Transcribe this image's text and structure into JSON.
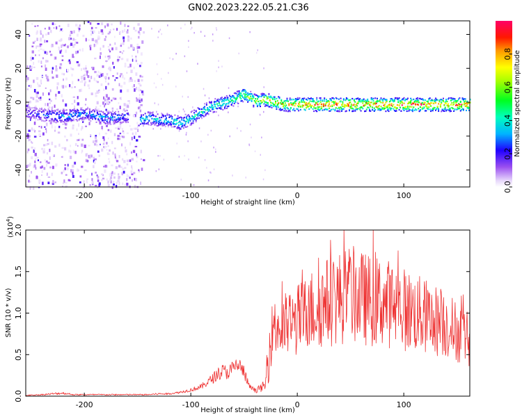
{
  "title": "GN02.2023.222.05.21.C36",
  "chart_data": [
    {
      "type": "heatmap",
      "xlabel": "Height of straight line (km)",
      "ylabel": "Frequency (Hz)",
      "xlim": [
        -255,
        162
      ],
      "ylim": [
        -50,
        48
      ],
      "x_ticks": [
        -200,
        -100,
        0,
        100
      ],
      "y_ticks": [
        -40,
        -20,
        0,
        20,
        40
      ],
      "colorbar": {
        "label": "Normalized spectral amplitude",
        "range": [
          0.0,
          1.0
        ],
        "ticks": [
          0.0,
          0.2,
          0.4,
          0.6,
          0.8
        ],
        "colormap": [
          "#ffffff",
          "#e6d5fb",
          "#a05cf2",
          "#6a00f0",
          "#0000ff",
          "#00c8ff",
          "#00ff80",
          "#ffff00",
          "#ff8000",
          "#ff0000",
          "#ff0066"
        ]
      },
      "ridge": {
        "description_points_x": [
          -255,
          -220,
          -200,
          -180,
          -160,
          -150,
          -140,
          -130,
          -120,
          -110,
          -100,
          -90,
          -80,
          -70,
          -60,
          -50,
          -40,
          -30,
          -20,
          -10,
          0,
          50,
          100,
          162
        ],
        "description_points_y": [
          -6,
          -8,
          -6,
          -9,
          -8,
          -10,
          -9,
          -10,
          -10,
          -12,
          -9,
          -5,
          -2,
          0,
          2,
          5,
          1,
          2,
          0,
          -1,
          -1,
          -1,
          -1,
          -1
        ],
        "amplitude": [
          0.2,
          0.35,
          0.3,
          0.35,
          0.3,
          0.35,
          0.4,
          0.4,
          0.4,
          0.45,
          0.4,
          0.45,
          0.45,
          0.5,
          0.5,
          0.6,
          0.65,
          0.7,
          0.75,
          0.8,
          0.85,
          0.9,
          0.9,
          0.85
        ]
      }
    },
    {
      "type": "line",
      "xlabel": "Height of straight line (km)",
      "ylabel": "SNR (10 * v/v)",
      "y_multiplier": "(x10",
      "y_multiplier_exp": "4",
      "xlim": [
        -255,
        162
      ],
      "ylim": [
        0,
        2.0
      ],
      "x_ticks": [
        -200,
        -100,
        0,
        100
      ],
      "y_ticks": [
        "0.0",
        "0.5",
        "1.0",
        "1.5",
        "2.0"
      ],
      "color": "#ee3333",
      "series": [
        {
          "x": [
            -255,
            -240,
            -230,
            -220,
            -210,
            -200,
            -190,
            -180,
            -170,
            -160,
            -150,
            -140,
            -130,
            -120,
            -110,
            -100,
            -90,
            -80,
            -75,
            -70,
            -65,
            -60,
            -55,
            -50,
            -45,
            -40,
            -35,
            -30,
            -27,
            -25,
            -22,
            -20,
            -15,
            -10,
            -5,
            0,
            10,
            20,
            30,
            40,
            50,
            60,
            70,
            80,
            90,
            100,
            110,
            120,
            130,
            140,
            150,
            162
          ],
          "y": [
            0.01,
            0.02,
            0.03,
            0.04,
            0.02,
            0.02,
            0.02,
            0.02,
            0.02,
            0.02,
            0.02,
            0.02,
            0.03,
            0.03,
            0.05,
            0.08,
            0.12,
            0.22,
            0.28,
            0.32,
            0.3,
            0.36,
            0.4,
            0.3,
            0.12,
            0.08,
            0.1,
            0.15,
            0.35,
            0.7,
            1.0,
            0.95,
            0.85,
            0.95,
            0.95,
            1.0,
            1.1,
            1.2,
            1.25,
            1.3,
            1.35,
            1.3,
            1.25,
            1.25,
            1.2,
            1.15,
            1.1,
            1.05,
            1.0,
            0.95,
            0.85,
            0.75
          ]
        }
      ]
    }
  ]
}
